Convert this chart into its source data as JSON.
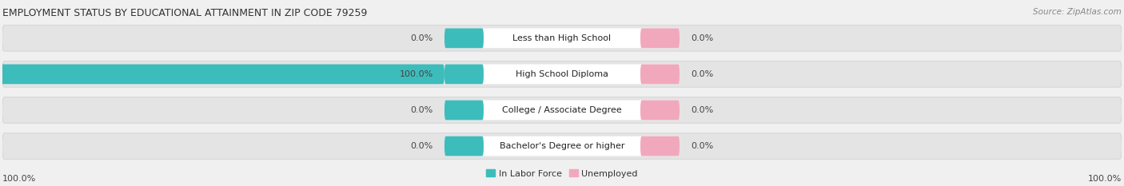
{
  "title": "EMPLOYMENT STATUS BY EDUCATIONAL ATTAINMENT IN ZIP CODE 79259",
  "source": "Source: ZipAtlas.com",
  "categories": [
    "Less than High School",
    "High School Diploma",
    "College / Associate Degree",
    "Bachelor's Degree or higher"
  ],
  "labor_force_values": [
    0.0,
    100.0,
    0.0,
    0.0
  ],
  "unemployed_values": [
    0.0,
    0.0,
    0.0,
    0.0
  ],
  "labor_force_color": "#3dbcbc",
  "unemployed_color": "#f2a8bc",
  "background_color": "#f0f0f0",
  "bar_bg_color": "#e4e4e4",
  "title_fontsize": 9.0,
  "source_fontsize": 7.5,
  "label_fontsize": 8.0,
  "legend_fontsize": 8.0,
  "bottom_left_label": "100.0%",
  "bottom_right_label": "100.0%"
}
